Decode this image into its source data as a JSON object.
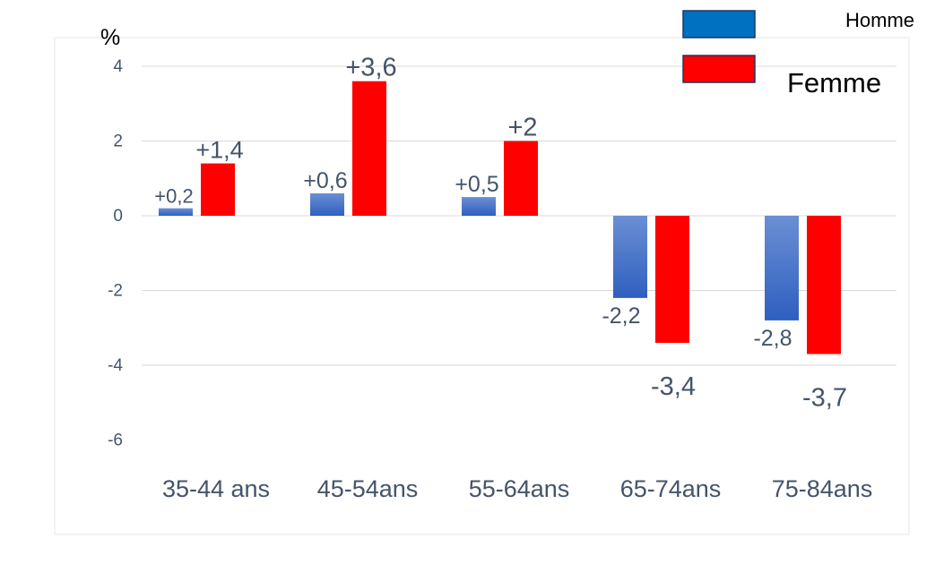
{
  "chart_data": {
    "type": "bar",
    "unit_label": "%",
    "categories": [
      "35-44 ans",
      "45-54ans",
      "55-64ans",
      "65-74ans",
      "75-84ans"
    ],
    "series": [
      {
        "name": "Homme",
        "values": [
          0.2,
          0.6,
          0.5,
          -2.2,
          -2.8
        ],
        "labels": [
          "+0,2",
          "+0,6",
          "+0,5",
          "-2,2",
          "-2,8"
        ],
        "color": "#4472c4"
      },
      {
        "name": "Femme",
        "values": [
          1.4,
          3.6,
          2,
          -3.4,
          -3.7
        ],
        "labels": [
          "+1,4",
          "+3,6",
          "+2",
          "-3,4",
          "-3,7"
        ],
        "color": "#ff0000"
      }
    ],
    "yticks": [
      "4",
      "2",
      "0",
      "-2",
      "-4",
      "-6"
    ],
    "ylim": [
      -6,
      4
    ],
    "grid": true,
    "legend_position": "top-right"
  }
}
